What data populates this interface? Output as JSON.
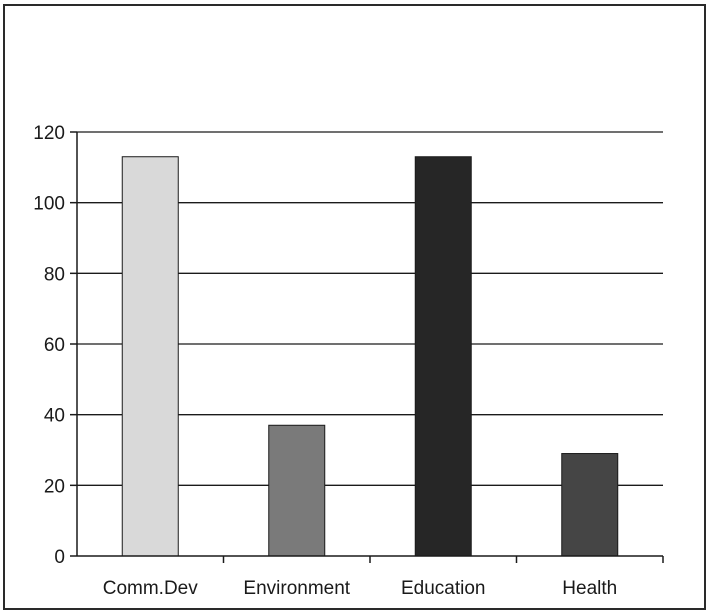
{
  "chart_data": {
    "type": "bar",
    "categories": [
      "Comm.Dev",
      "Environment",
      "Education",
      "Health"
    ],
    "values": [
      113,
      37,
      113,
      29
    ],
    "bar_colors": [
      "#d9d9d9",
      "#7a7a7a",
      "#262626",
      "#454545"
    ],
    "title": "",
    "xlabel": "",
    "ylabel": "",
    "ylim": [
      0,
      120
    ],
    "yticks": [
      0,
      20,
      40,
      60,
      80,
      100,
      120
    ],
    "grid": true
  }
}
